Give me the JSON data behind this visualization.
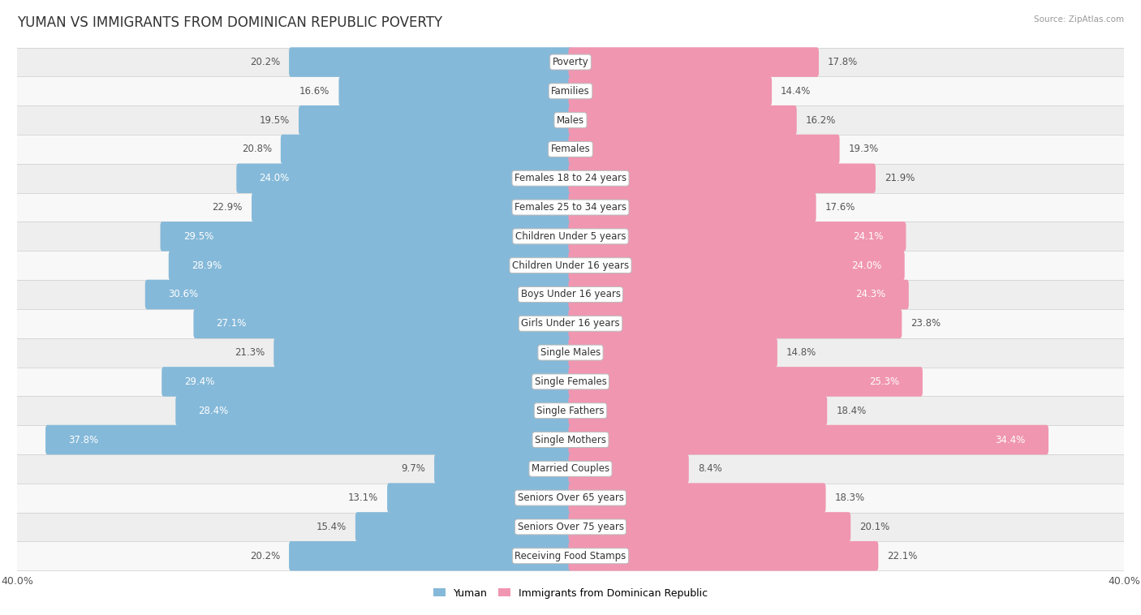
{
  "title": "YUMAN VS IMMIGRANTS FROM DOMINICAN REPUBLIC POVERTY",
  "source": "Source: ZipAtlas.com",
  "categories": [
    "Poverty",
    "Families",
    "Males",
    "Females",
    "Females 18 to 24 years",
    "Females 25 to 34 years",
    "Children Under 5 years",
    "Children Under 16 years",
    "Boys Under 16 years",
    "Girls Under 16 years",
    "Single Males",
    "Single Females",
    "Single Fathers",
    "Single Mothers",
    "Married Couples",
    "Seniors Over 65 years",
    "Seniors Over 75 years",
    "Receiving Food Stamps"
  ],
  "yuman_values": [
    20.2,
    16.6,
    19.5,
    20.8,
    24.0,
    22.9,
    29.5,
    28.9,
    30.6,
    27.1,
    21.3,
    29.4,
    28.4,
    37.8,
    9.7,
    13.1,
    15.4,
    20.2
  ],
  "dominican_values": [
    17.8,
    14.4,
    16.2,
    19.3,
    21.9,
    17.6,
    24.1,
    24.0,
    24.3,
    23.8,
    14.8,
    25.3,
    18.4,
    34.4,
    8.4,
    18.3,
    20.1,
    22.1
  ],
  "yuman_color": "#85b9d9",
  "dominican_color": "#f096b0",
  "inside_threshold": 24.0,
  "bar_height": 0.72,
  "row_bg_colors": [
    "#eeeeee",
    "#f8f8f8"
  ],
  "axis_max": 40.0,
  "legend_yuman": "Yuman",
  "legend_dominican": "Immigrants from Dominican Republic",
  "background_color": "#ffffff",
  "title_fontsize": 12,
  "label_fontsize": 8.5,
  "category_fontsize": 8.5
}
